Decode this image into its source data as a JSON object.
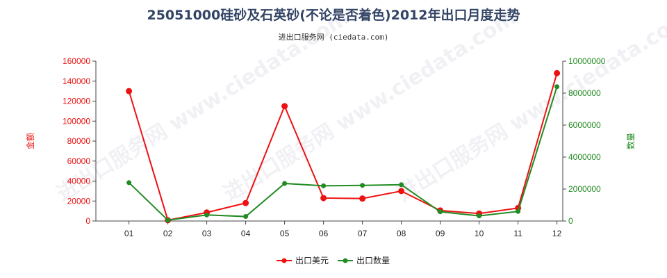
{
  "colors": {
    "left_series": "#ee1111",
    "right_series": "#228b22",
    "axis": "#444444",
    "title": "#334466"
  },
  "chart_data": {
    "type": "line",
    "title": "25051000硅砂及石英砂(不论是否着色)2012年出口月度走势",
    "subtitle": "进出口服务网 (ciedata.com)",
    "watermark": "进出口服务网 www.ciedata.com",
    "categories": [
      "01",
      "02",
      "03",
      "04",
      "05",
      "06",
      "07",
      "08",
      "09",
      "10",
      "11",
      "12"
    ],
    "y_left": {
      "label": "金额",
      "lim": [
        0,
        160000
      ],
      "ticks": [
        "0",
        "20000",
        "40000",
        "60000",
        "80000",
        "100000",
        "120000",
        "140000",
        "160000"
      ]
    },
    "y_right": {
      "label": "数量",
      "lim": [
        0,
        10000000
      ],
      "ticks": [
        "0",
        "2000000",
        "4000000",
        "6000000",
        "8000000",
        "10000000"
      ]
    },
    "series": [
      {
        "name": "出口美元",
        "axis": "left",
        "values": [
          130000,
          800,
          8500,
          18000,
          115000,
          23000,
          22500,
          30000,
          10500,
          7500,
          13000,
          148000
        ]
      },
      {
        "name": "出口数量",
        "axis": "right",
        "values": [
          2400000,
          50000,
          380000,
          280000,
          2350000,
          2200000,
          2230000,
          2270000,
          580000,
          320000,
          600000,
          8400000
        ]
      }
    ],
    "legend_position": "bottom-center",
    "grid": false
  }
}
